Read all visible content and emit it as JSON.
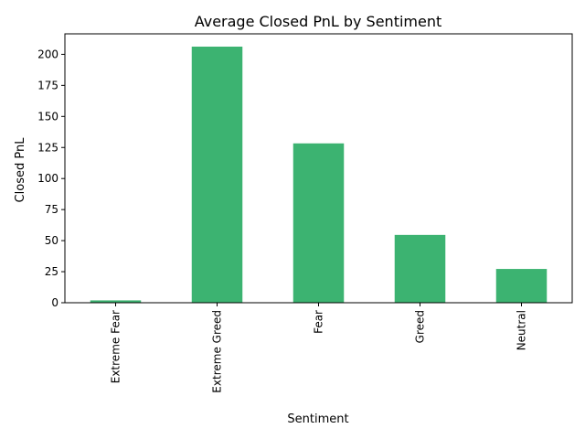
{
  "chart_data": {
    "type": "bar",
    "title": "Average Closed PnL by Sentiment",
    "xlabel": "Sentiment",
    "ylabel": "Closed PnL",
    "categories": [
      "Extreme Fear",
      "Extreme Greed",
      "Fear",
      "Greed",
      "Neutral"
    ],
    "values": [
      1.9,
      206.2,
      128.3,
      54.6,
      27.2
    ],
    "ylim": [
      0,
      216.5
    ],
    "yticks": [
      0,
      25,
      50,
      75,
      100,
      125,
      150,
      175,
      200
    ],
    "grid": false,
    "legend": "none",
    "bar_color": "#3cb371"
  }
}
